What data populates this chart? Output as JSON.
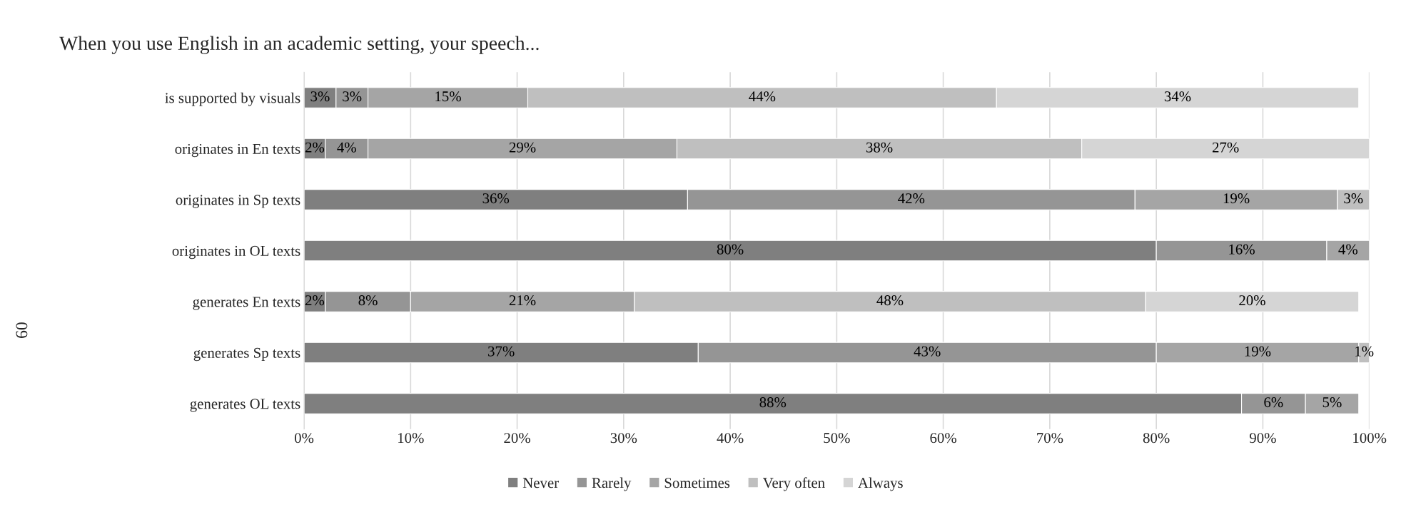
{
  "chart_data": {
    "type": "bar",
    "orientation": "horizontal",
    "stacked": true,
    "title": "When you use English in an academic setting, your speech...",
    "categories": [
      "is supported by visuals",
      "originates in En texts",
      "originates in Sp texts",
      "originates in OL texts",
      "generates En texts",
      "generates Sp texts",
      "generates OL texts"
    ],
    "series": [
      {
        "name": "Never",
        "color": "#7f7f7f",
        "values": [
          3,
          2,
          36,
          80,
          2,
          37,
          88
        ],
        "value_labels": [
          "3%",
          "2%",
          "36%",
          "80%",
          "2%",
          "37%",
          "88%"
        ]
      },
      {
        "name": "Rarely",
        "color": "#959595",
        "values": [
          3,
          4,
          42,
          16,
          8,
          43,
          6
        ],
        "value_labels": [
          "3%",
          "4%",
          "42%",
          "16%",
          "8%",
          "43%",
          "6%"
        ]
      },
      {
        "name": "Sometimes",
        "color": "#a5a5a5",
        "values": [
          15,
          29,
          19,
          4,
          21,
          19,
          5
        ],
        "value_labels": [
          "15%",
          "29%",
          "19%",
          "4%",
          "21%",
          "19%",
          "5%"
        ]
      },
      {
        "name": "Very often",
        "color": "#bfbfbf",
        "values": [
          44,
          38,
          3,
          null,
          48,
          1,
          null
        ],
        "value_labels": [
          "44%",
          "38%",
          "3%",
          null,
          "48%",
          "1%",
          null
        ]
      },
      {
        "name": "Always",
        "color": "#d5d5d5",
        "values": [
          34,
          27,
          null,
          null,
          20,
          null,
          null
        ],
        "value_labels": [
          "34%",
          "27%",
          null,
          null,
          "20%",
          null,
          null
        ]
      }
    ],
    "xlim": [
      0,
      100
    ],
    "xticks": [
      {
        "value": 0,
        "label": "0%"
      },
      {
        "value": 10,
        "label": "10%"
      },
      {
        "value": 20,
        "label": "20%"
      },
      {
        "value": 30,
        "label": "30%"
      },
      {
        "value": 40,
        "label": "40%"
      },
      {
        "value": 50,
        "label": "50%"
      },
      {
        "value": 60,
        "label": "60%"
      },
      {
        "value": 70,
        "label": "70%"
      },
      {
        "value": 80,
        "label": "80%"
      },
      {
        "value": 90,
        "label": "90%"
      },
      {
        "value": 100,
        "label": "100%"
      }
    ],
    "grid": "x",
    "legend": "bottom",
    "annotations": [
      "60"
    ]
  }
}
